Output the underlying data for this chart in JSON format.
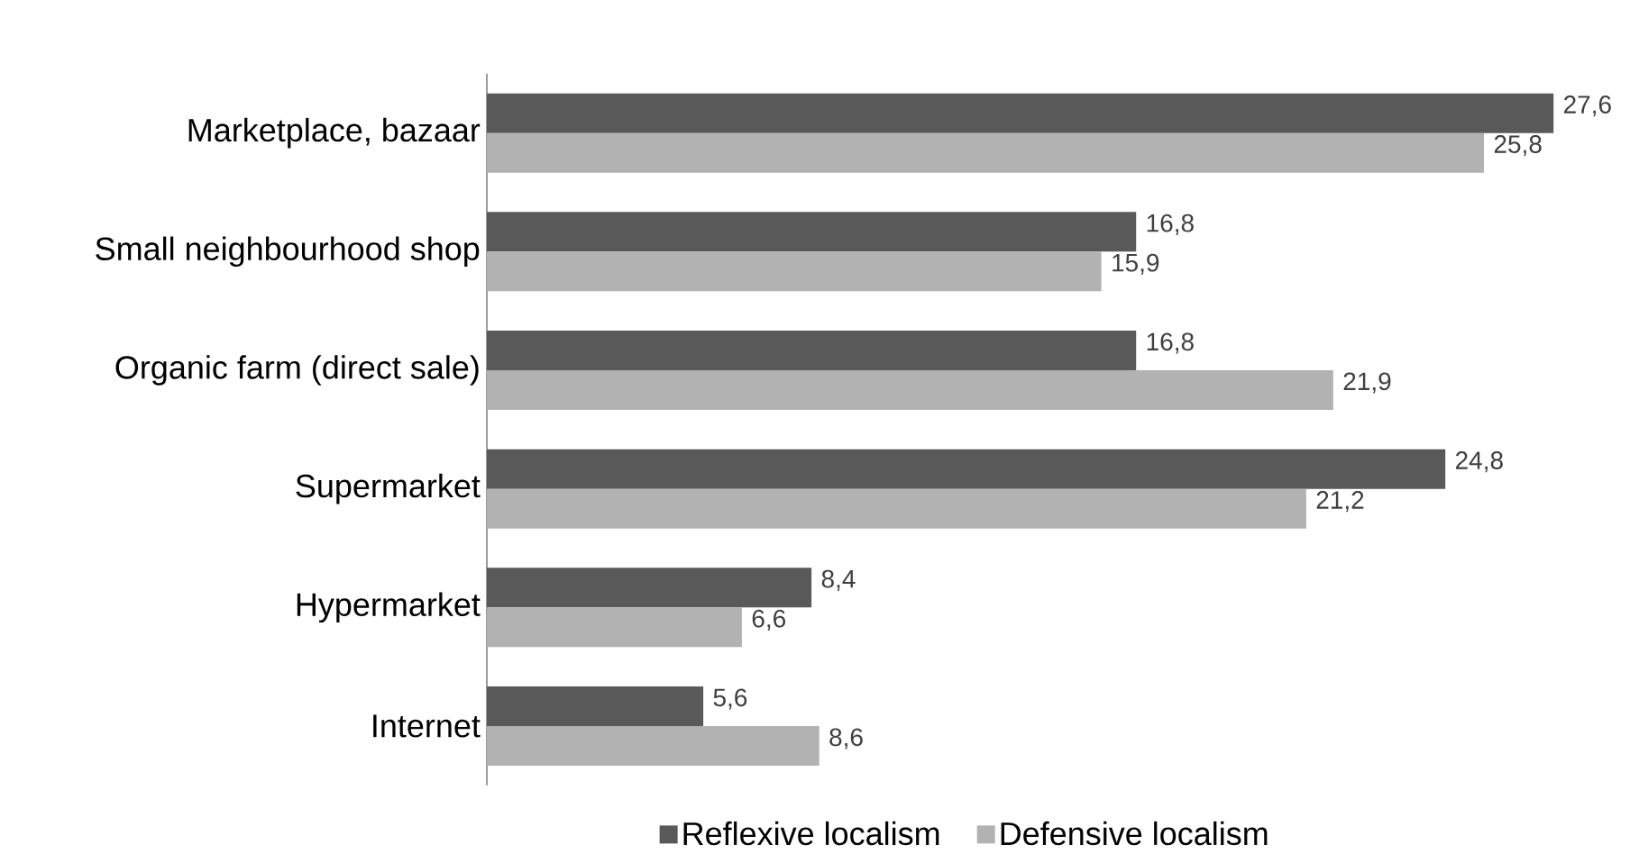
{
  "chart_data": {
    "type": "bar",
    "orientation": "horizontal",
    "categories": [
      "Marketplace, bazaar",
      "Small neighbourhood shop",
      "Organic farm (direct sale)",
      "Supermarket",
      "Hypermarket",
      "Internet"
    ],
    "series": [
      {
        "name": "Reflexive localism",
        "color": "#595959",
        "values": [
          27.6,
          16.8,
          16.8,
          24.8,
          8.4,
          5.6
        ],
        "value_labels": [
          "27,6",
          "16,8",
          "16,8",
          "24,8",
          "8,4",
          "5,6"
        ]
      },
      {
        "name": "Defensive localism",
        "color": "#b2b2b2",
        "values": [
          25.8,
          15.9,
          21.9,
          21.2,
          6.6,
          8.6
        ],
        "value_labels": [
          "25,8",
          "15,9",
          "21,9",
          "21,2",
          "6,6",
          "8,6"
        ]
      }
    ],
    "legend": "bottom"
  }
}
